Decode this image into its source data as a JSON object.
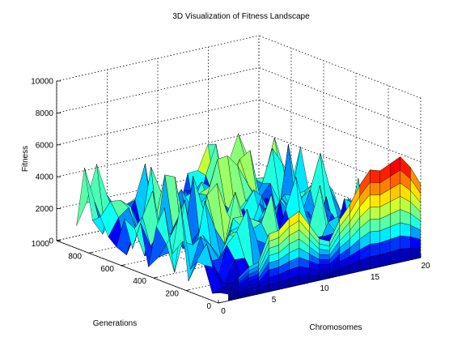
{
  "chart_data": {
    "type": "surface",
    "title": "3D Visualization of Fitness Landscape",
    "xlabel": "Chromosomes",
    "ylabel": "Generations",
    "zlabel": "Fitness",
    "xlim": [
      0,
      20
    ],
    "ylim": [
      0,
      1000
    ],
    "zlim": [
      0,
      10000
    ],
    "xticks": [
      "0",
      "5",
      "10",
      "15",
      "20"
    ],
    "yticks": [
      "0",
      "200",
      "400",
      "600",
      "800",
      "1000"
    ],
    "zticks": [
      "0",
      "2000",
      "4000",
      "6000",
      "8000",
      "10000"
    ],
    "grid": true,
    "colormap": "jet",
    "colormap_stops": [
      "#00008f",
      "#0000ff",
      "#00ffff",
      "#80ff80",
      "#ffff00",
      "#ff8000",
      "#ff0000",
      "#800000"
    ],
    "surface": {
      "x_count": 20,
      "y_count": 20,
      "y_range": [
        1,
        940
      ],
      "front_row_fitness": [
        400,
        1300,
        1800,
        2000,
        3600,
        3700,
        4300,
        4600,
        3600,
        2600,
        2300,
        3500,
        4300,
        5400,
        6200,
        6000,
        6300,
        6600,
        5800,
        4600
      ],
      "back_region_fitness_typical": [
        1000,
        3000
      ],
      "back_region_fitness_peaks": [
        4000,
        5000
      ]
    }
  }
}
